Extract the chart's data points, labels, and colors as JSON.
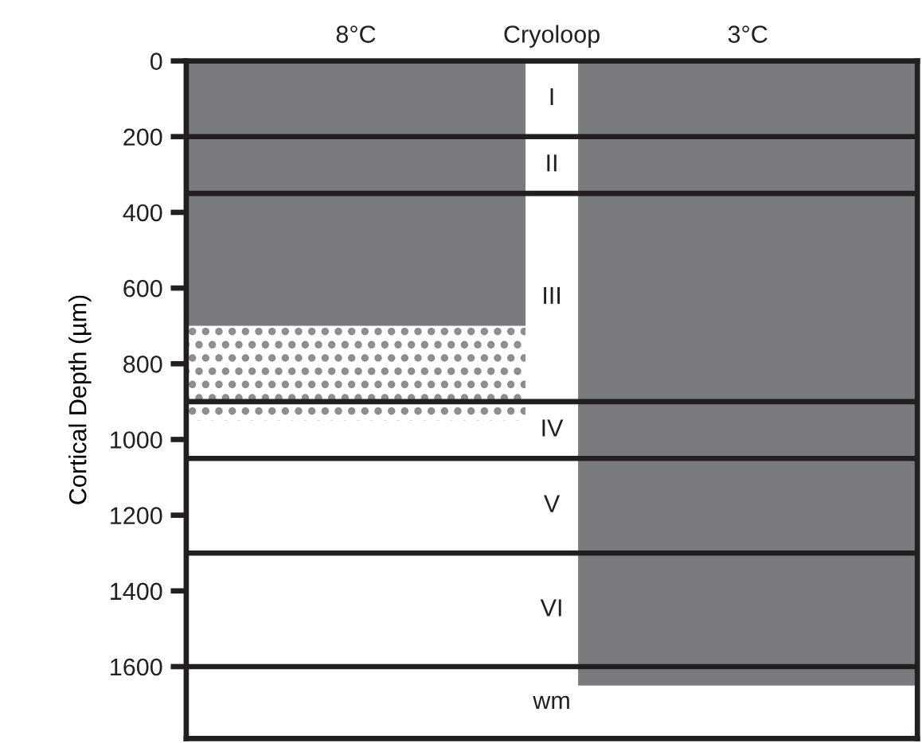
{
  "chart_data": {
    "type": "bar",
    "stacked": true,
    "categories": [
      "8°C",
      "Cryoloop",
      "3°C"
    ],
    "series": [
      {
        "color": "#7a7b7f",
        "values": [
          700,
          null,
          1650
        ]
      },
      {
        "color": "#8c8c8c",
        "values": [
          250,
          null,
          null
        ]
      }
    ],
    "ylabel": "Cortical Depth (µm)",
    "ylim": [
      1790,
      0
    ],
    "yticks": [
      0,
      200,
      400,
      600,
      800,
      1000,
      1200,
      1400,
      1600
    ],
    "ref_lines": [
      {
        "axis": "y",
        "value": 200
      },
      {
        "axis": "y",
        "value": 350
      },
      {
        "axis": "y",
        "value": 900
      },
      {
        "axis": "y",
        "value": 1050
      },
      {
        "axis": "y",
        "value": 1300
      },
      {
        "axis": "y",
        "value": 1600
      }
    ],
    "annotations": [
      "I",
      "II",
      "III",
      "IV",
      "V",
      "VI",
      "wm"
    ]
  }
}
